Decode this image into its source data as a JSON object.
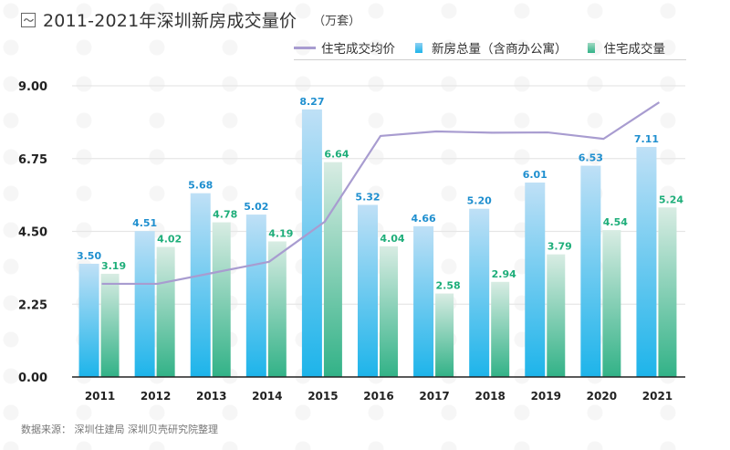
{
  "header": {
    "title": "2011-2021年深圳新房成交量价",
    "unit": "（万套）",
    "icon": "line-chart-icon"
  },
  "legend": [
    {
      "label": "住宅成交均价",
      "type": "line",
      "color": "#a89cd0"
    },
    {
      "label": "新房总量（含商办公寓）",
      "type": "bar",
      "color": "#3fb0e8"
    },
    {
      "label": "住宅成交量",
      "type": "bar",
      "color": "#3db38b"
    }
  ],
  "footer": {
    "source": "数据来源：  深圳住建局 深圳贝壳研究院整理"
  },
  "colors": {
    "blue_top": "#bfe0f6",
    "blue_bottom": "#1db4ea",
    "green_top": "#d8ece3",
    "green_bottom": "#32b287",
    "blue_label": "#1f8fcf",
    "green_label": "#1fae7a",
    "line": "#a89cd0",
    "grid": "#e6e6e6",
    "axis": "#222222"
  },
  "chart_data": {
    "type": "bar",
    "title": "2011-2021年深圳新房成交量价",
    "unit": "万套",
    "xlabel": "",
    "ylabel": "",
    "categories": [
      "2011",
      "2012",
      "2013",
      "2014",
      "2015",
      "2016",
      "2017",
      "2018",
      "2019",
      "2020",
      "2021"
    ],
    "ylim": [
      0,
      9
    ],
    "yticks": [
      "0.00",
      "2.25",
      "4.50",
      "6.75",
      "9.00"
    ],
    "ytick_values": [
      0,
      2.25,
      4.5,
      6.75,
      9
    ],
    "grid": true,
    "legend_position": "top-right",
    "series": [
      {
        "name": "新房总量（含商办公寓）",
        "kind": "bar",
        "values": [
          3.5,
          4.51,
          5.68,
          5.02,
          8.27,
          5.32,
          4.66,
          5.2,
          6.01,
          6.53,
          7.11
        ],
        "labels": [
          "3.50",
          "4.51",
          "5.68",
          "5.02",
          "8.27",
          "5.32",
          "4.66",
          "5.20",
          "6.01",
          "6.53",
          "7.11"
        ]
      },
      {
        "name": "住宅成交量",
        "kind": "bar",
        "values": [
          3.19,
          4.02,
          4.78,
          4.19,
          6.64,
          4.04,
          2.58,
          2.94,
          3.79,
          4.54,
          5.24
        ],
        "labels": [
          "3.19",
          "4.02",
          "4.78",
          "4.19",
          "6.64",
          "4.04",
          "2.58",
          "2.94",
          "3.79",
          "4.54",
          "5.24"
        ]
      },
      {
        "name": "住宅成交均价",
        "kind": "line",
        "note": "no secondary axis shown; values estimated on left-axis scale",
        "values": [
          2.88,
          2.88,
          3.22,
          3.56,
          4.8,
          7.45,
          7.59,
          7.55,
          7.56,
          7.36,
          8.49
        ]
      }
    ]
  }
}
